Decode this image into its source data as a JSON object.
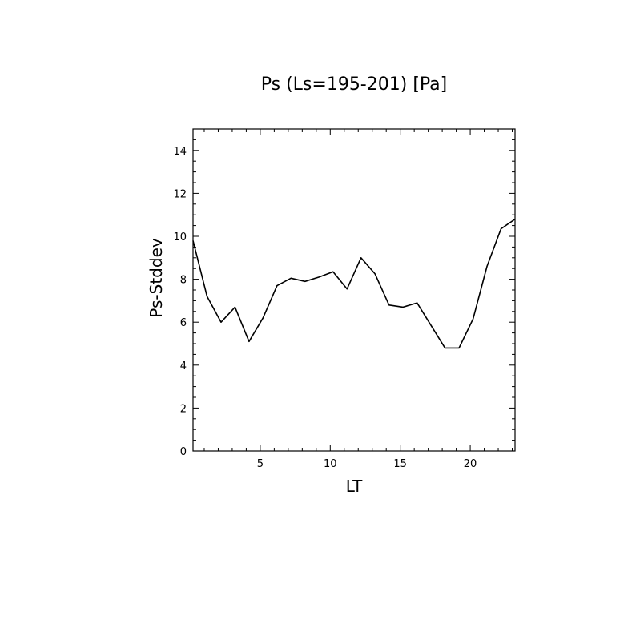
{
  "chart_data": {
    "type": "line",
    "title": "Ps (Ls=195-201) [Pa]",
    "xlabel": "LT",
    "ylabel": "Ps-Stddev",
    "xlim": [
      0.2,
      23.2
    ],
    "ylim": [
      0,
      15
    ],
    "xticks": [
      5,
      10,
      15,
      20
    ],
    "yticks": [
      0,
      2,
      4,
      6,
      8,
      10,
      12,
      14
    ],
    "grid": false,
    "legend": "none",
    "line_color": "#000000",
    "series": [
      {
        "x": [
          0.2,
          1.2,
          2.2,
          3.2,
          4.2,
          5.2,
          6.2,
          7.2,
          8.2,
          9.2,
          10.2,
          11.2,
          12.2,
          13.2,
          14.2,
          15.2,
          16.2,
          17.2,
          18.2,
          19.2,
          20.2,
          21.2,
          22.2,
          23.2
        ],
        "y": [
          9.8,
          7.2,
          6.0,
          6.7,
          5.1,
          6.2,
          7.7,
          8.05,
          7.9,
          8.1,
          8.35,
          7.55,
          9.0,
          8.25,
          6.8,
          6.7,
          6.9,
          5.85,
          4.8,
          4.8,
          6.15,
          8.6,
          10.35,
          10.8
        ]
      }
    ]
  }
}
